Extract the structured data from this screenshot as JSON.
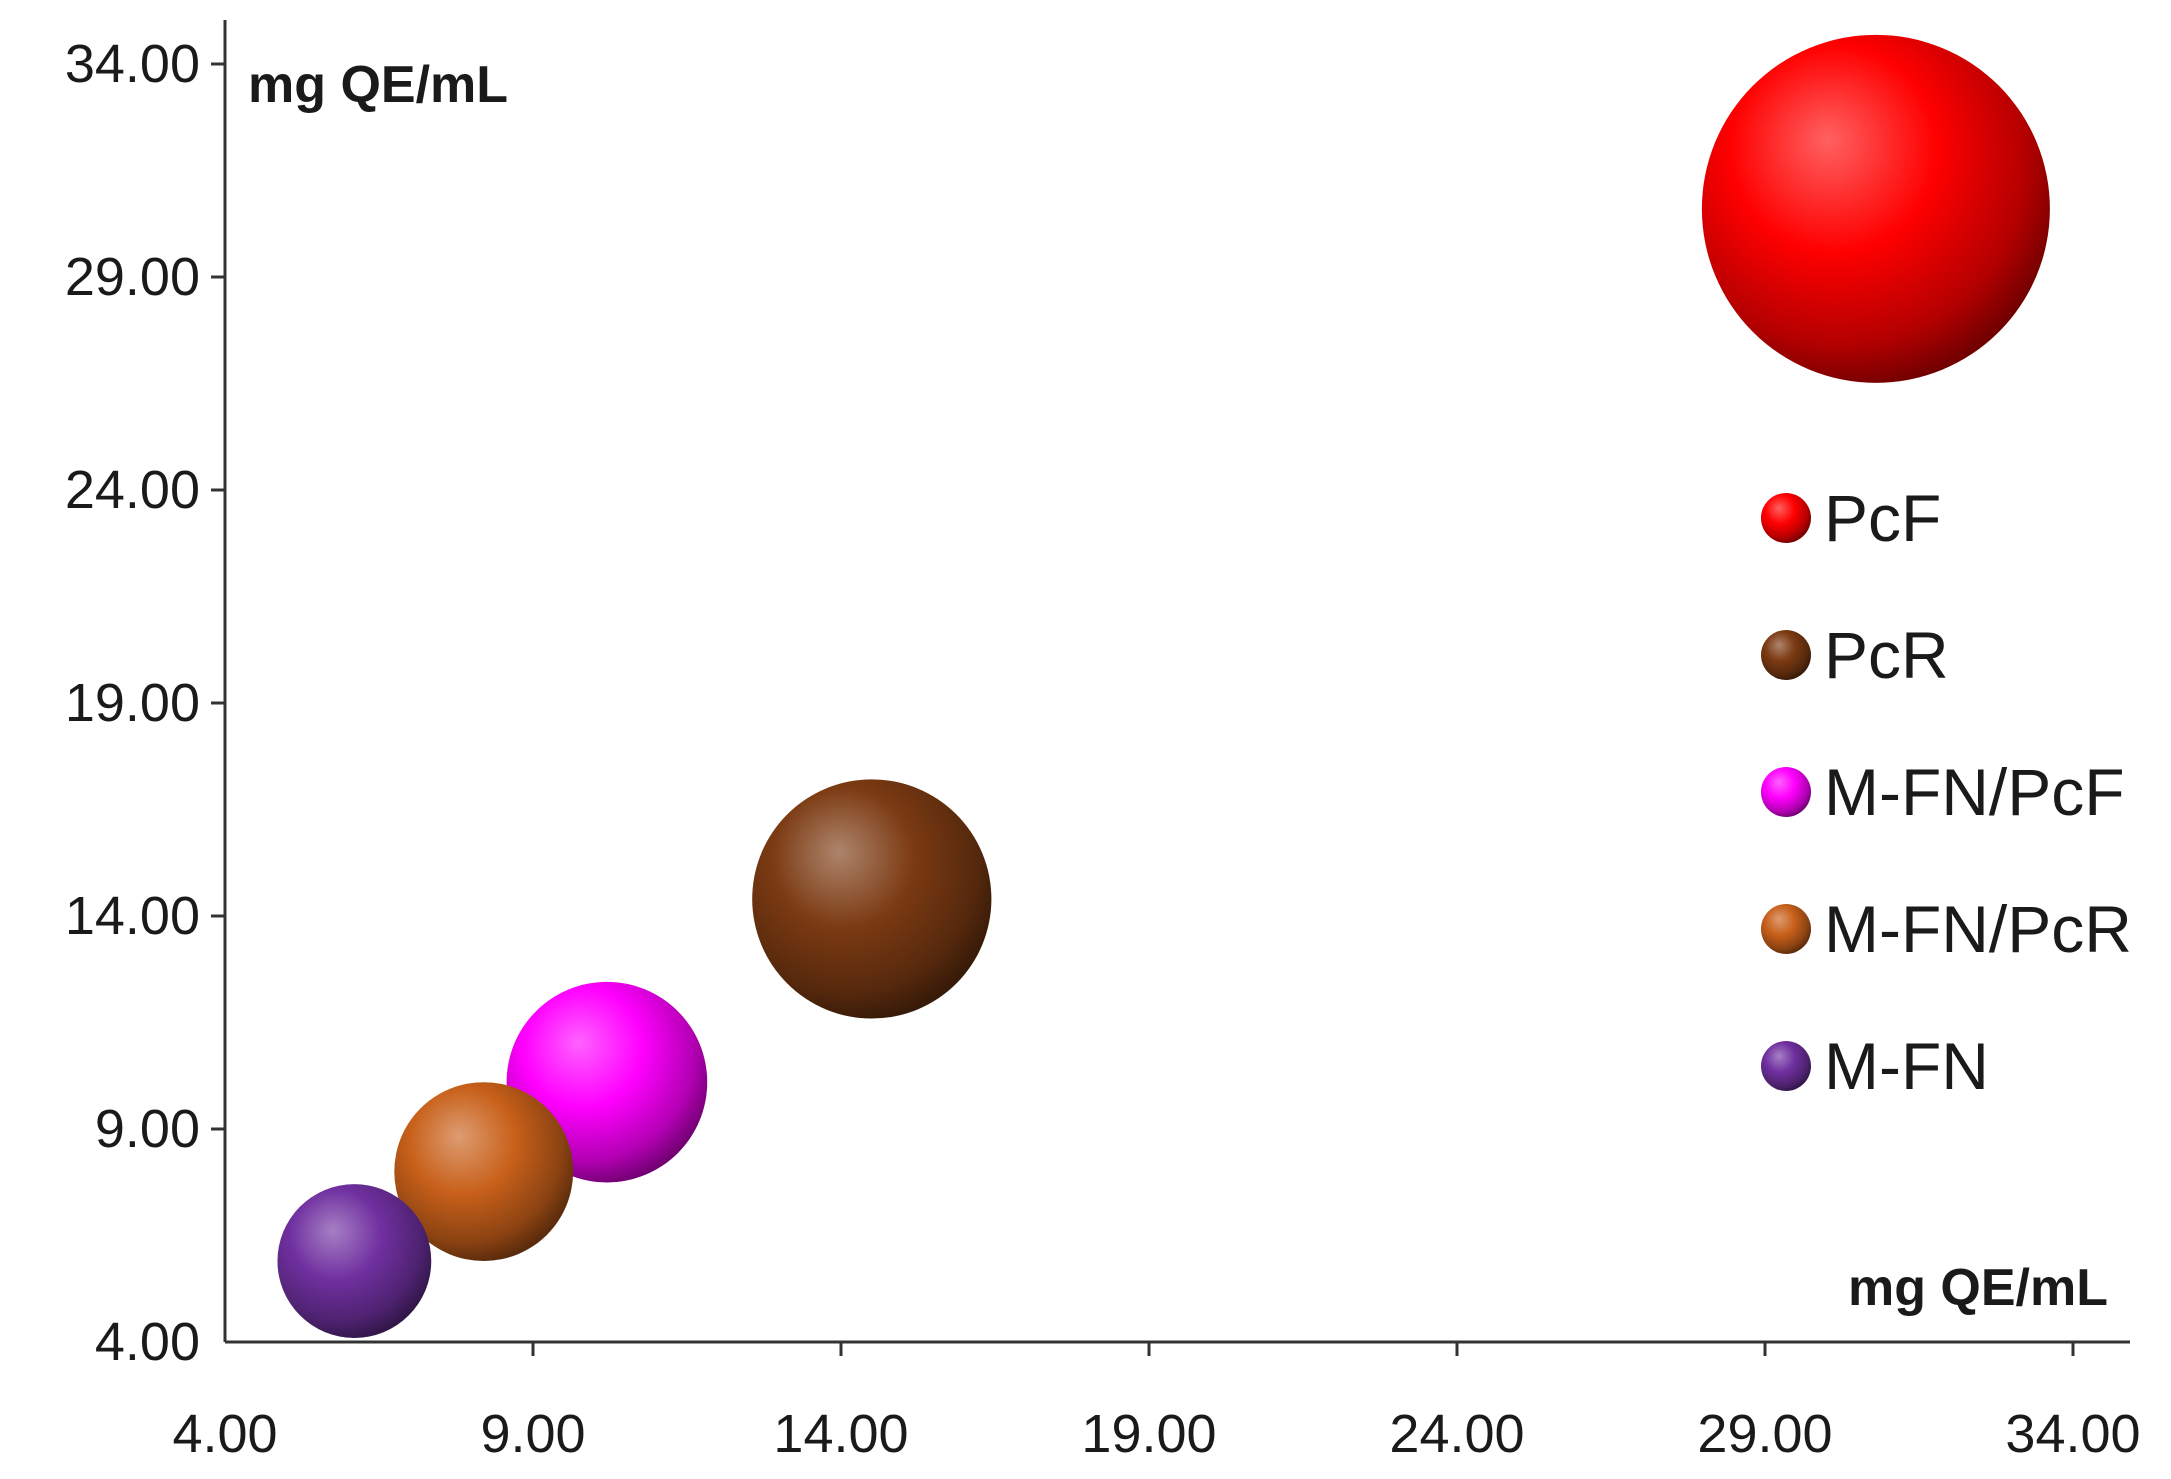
{
  "chart_data": {
    "type": "bubble",
    "xlabel": "mg QE/mL",
    "ylabel": "mg QE/mL",
    "xlim": [
      4.0,
      34.0
    ],
    "ylim": [
      4.0,
      34.0
    ],
    "xticks": [
      "4.00",
      "9.00",
      "14.00",
      "19.00",
      "24.00",
      "29.00",
      "34.00"
    ],
    "yticks": [
      "4.00",
      "9.00",
      "14.00",
      "19.00",
      "24.00",
      "29.00",
      "34.00"
    ],
    "tick_values": [
      4,
      9,
      14,
      19,
      24,
      29,
      34
    ],
    "grid": false,
    "legend_position": "right",
    "series": [
      {
        "name": "PcF",
        "x": 30.8,
        "y": 30.6,
        "size": 30.7,
        "color": "#ff0000"
      },
      {
        "name": "PcR",
        "x": 14.5,
        "y": 14.4,
        "size": 14.5,
        "color": "#7b3a12"
      },
      {
        "name": "M-FN/PcF",
        "x": 10.2,
        "y": 10.1,
        "size": 10.2,
        "color": "#ff00ff"
      },
      {
        "name": "M-FN/PcR",
        "x": 8.2,
        "y": 8.0,
        "size": 8.1,
        "color": "#c8601a"
      },
      {
        "name": "M-FN",
        "x": 6.1,
        "y": 5.9,
        "size": 6.0,
        "color": "#7030a0"
      }
    ]
  }
}
